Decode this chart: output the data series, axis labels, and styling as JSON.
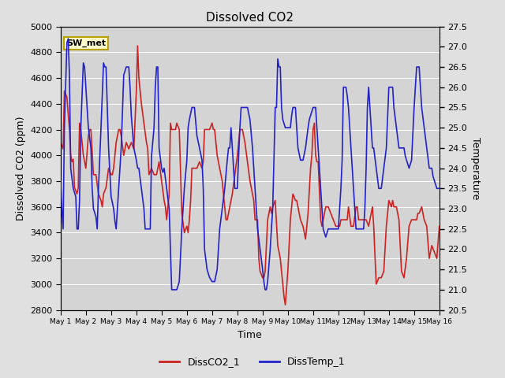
{
  "title": "Dissolved CO2",
  "xlabel": "Time",
  "ylabel_left": "Dissolved CO2 (ppm)",
  "ylabel_right": "Temperature",
  "legend_label": "SW_met",
  "series1_label": "DissCO2_1",
  "series2_label": "DissTemp_1",
  "ylim_left": [
    2800,
    5000
  ],
  "ylim_right": [
    20.5,
    27.5
  ],
  "xtick_labels": [
    "May 1",
    "May 2",
    "May 3",
    "May 4",
    "May 5",
    "May 6",
    "May 7",
    "May 8",
    "May 9",
    "May 10",
    "May 11",
    "May 12",
    "May 13",
    "May 14",
    "May 15",
    "May 16"
  ],
  "color_co2": "#cc2222",
  "color_temp": "#2222cc",
  "bg_color": "#e0e0e0",
  "plot_bg_color": "#d4d4d4",
  "grid_color": "#ffffff",
  "title_fontsize": 11,
  "label_fontsize": 9,
  "tick_fontsize": 8,
  "legend_box_edgecolor": "#b8a000",
  "legend_box_bg": "#ffffcc",
  "co2_data": [
    [
      0.0,
      4100
    ],
    [
      0.1,
      4050
    ],
    [
      0.15,
      4500
    ],
    [
      0.25,
      4450
    ],
    [
      0.35,
      4200
    ],
    [
      0.4,
      4000
    ],
    [
      0.45,
      3950
    ],
    [
      0.5,
      3970
    ],
    [
      0.55,
      3750
    ],
    [
      0.65,
      3700
    ],
    [
      0.7,
      3750
    ],
    [
      0.75,
      4250
    ],
    [
      0.8,
      4200
    ],
    [
      0.9,
      4000
    ],
    [
      1.0,
      3900
    ],
    [
      1.1,
      4150
    ],
    [
      1.15,
      4200
    ],
    [
      1.2,
      4200
    ],
    [
      1.3,
      3850
    ],
    [
      1.4,
      3850
    ],
    [
      1.5,
      3700
    ],
    [
      1.6,
      3650
    ],
    [
      1.65,
      3600
    ],
    [
      1.7,
      3700
    ],
    [
      1.8,
      3750
    ],
    [
      1.9,
      3900
    ],
    [
      2.0,
      3850
    ],
    [
      2.05,
      3850
    ],
    [
      2.1,
      3900
    ],
    [
      2.2,
      4100
    ],
    [
      2.3,
      4200
    ],
    [
      2.35,
      4200
    ],
    [
      2.4,
      4150
    ],
    [
      2.5,
      4000
    ],
    [
      2.6,
      4100
    ],
    [
      2.7,
      4050
    ],
    [
      2.8,
      4100
    ],
    [
      2.9,
      4050
    ],
    [
      3.0,
      4500
    ],
    [
      3.05,
      4850
    ],
    [
      3.1,
      4600
    ],
    [
      3.2,
      4400
    ],
    [
      3.3,
      4250
    ],
    [
      3.4,
      4100
    ],
    [
      3.45,
      4050
    ],
    [
      3.5,
      3850
    ],
    [
      3.6,
      3900
    ],
    [
      3.7,
      3850
    ],
    [
      3.8,
      3850
    ],
    [
      3.9,
      3950
    ],
    [
      4.0,
      3800
    ],
    [
      4.1,
      3650
    ],
    [
      4.15,
      3600
    ],
    [
      4.2,
      3500
    ],
    [
      4.3,
      3700
    ],
    [
      4.35,
      4250
    ],
    [
      4.4,
      4200
    ],
    [
      4.5,
      4200
    ],
    [
      4.55,
      4200
    ],
    [
      4.6,
      4250
    ],
    [
      4.7,
      4200
    ],
    [
      4.8,
      3550
    ],
    [
      4.9,
      3400
    ],
    [
      5.0,
      3450
    ],
    [
      5.05,
      3400
    ],
    [
      5.1,
      3500
    ],
    [
      5.15,
      3650
    ],
    [
      5.2,
      3900
    ],
    [
      5.3,
      3900
    ],
    [
      5.4,
      3900
    ],
    [
      5.5,
      3950
    ],
    [
      5.6,
      3900
    ],
    [
      5.65,
      3950
    ],
    [
      5.7,
      4200
    ],
    [
      5.8,
      4200
    ],
    [
      5.9,
      4200
    ],
    [
      6.0,
      4250
    ],
    [
      6.05,
      4200
    ],
    [
      6.1,
      4200
    ],
    [
      6.2,
      4000
    ],
    [
      6.3,
      3900
    ],
    [
      6.4,
      3800
    ],
    [
      6.5,
      3600
    ],
    [
      6.55,
      3500
    ],
    [
      6.6,
      3500
    ],
    [
      6.7,
      3600
    ],
    [
      6.8,
      3700
    ],
    [
      6.9,
      3850
    ],
    [
      7.0,
      4000
    ],
    [
      7.1,
      4200
    ],
    [
      7.15,
      4200
    ],
    [
      7.2,
      4200
    ],
    [
      7.3,
      4100
    ],
    [
      7.4,
      3950
    ],
    [
      7.5,
      3800
    ],
    [
      7.6,
      3700
    ],
    [
      7.65,
      3650
    ],
    [
      7.7,
      3500
    ],
    [
      7.8,
      3500
    ],
    [
      7.85,
      3200
    ],
    [
      7.9,
      3100
    ],
    [
      8.0,
      3050
    ],
    [
      8.05,
      3050
    ],
    [
      8.1,
      3100
    ],
    [
      8.2,
      3500
    ],
    [
      8.3,
      3600
    ],
    [
      8.35,
      3550
    ],
    [
      8.4,
      3600
    ],
    [
      8.5,
      3650
    ],
    [
      8.6,
      3300
    ],
    [
      8.7,
      3200
    ],
    [
      8.75,
      3100
    ],
    [
      8.8,
      3000
    ],
    [
      8.85,
      2900
    ],
    [
      8.9,
      2840
    ],
    [
      9.0,
      3100
    ],
    [
      9.05,
      3300
    ],
    [
      9.1,
      3500
    ],
    [
      9.2,
      3700
    ],
    [
      9.3,
      3650
    ],
    [
      9.35,
      3650
    ],
    [
      9.4,
      3600
    ],
    [
      9.5,
      3500
    ],
    [
      9.6,
      3450
    ],
    [
      9.65,
      3400
    ],
    [
      9.7,
      3350
    ],
    [
      9.8,
      3550
    ],
    [
      9.9,
      3900
    ],
    [
      9.95,
      4000
    ],
    [
      10.0,
      4200
    ],
    [
      10.05,
      4250
    ],
    [
      10.1,
      4000
    ],
    [
      10.15,
      3950
    ],
    [
      10.2,
      3950
    ],
    [
      10.3,
      3500
    ],
    [
      10.35,
      3450
    ],
    [
      10.4,
      3500
    ],
    [
      10.5,
      3600
    ],
    [
      10.6,
      3600
    ],
    [
      10.7,
      3550
    ],
    [
      10.8,
      3500
    ],
    [
      10.9,
      3450
    ],
    [
      11.0,
      3450
    ],
    [
      11.05,
      3450
    ],
    [
      11.1,
      3500
    ],
    [
      11.15,
      3500
    ],
    [
      11.2,
      3500
    ],
    [
      11.3,
      3500
    ],
    [
      11.35,
      3500
    ],
    [
      11.4,
      3600
    ],
    [
      11.5,
      3450
    ],
    [
      11.6,
      3450
    ],
    [
      11.7,
      3600
    ],
    [
      11.75,
      3600
    ],
    [
      11.8,
      3500
    ],
    [
      11.9,
      3500
    ],
    [
      12.0,
      3500
    ],
    [
      12.05,
      3500
    ],
    [
      12.1,
      3500
    ],
    [
      12.2,
      3450
    ],
    [
      12.3,
      3550
    ],
    [
      12.35,
      3600
    ],
    [
      12.4,
      3450
    ],
    [
      12.5,
      3000
    ],
    [
      12.6,
      3050
    ],
    [
      12.65,
      3050
    ],
    [
      12.7,
      3050
    ],
    [
      12.8,
      3100
    ],
    [
      12.9,
      3450
    ],
    [
      13.0,
      3650
    ],
    [
      13.1,
      3600
    ],
    [
      13.15,
      3650
    ],
    [
      13.2,
      3600
    ],
    [
      13.3,
      3600
    ],
    [
      13.35,
      3550
    ],
    [
      13.4,
      3500
    ],
    [
      13.5,
      3100
    ],
    [
      13.6,
      3050
    ],
    [
      13.7,
      3200
    ],
    [
      13.8,
      3450
    ],
    [
      13.9,
      3500
    ],
    [
      14.0,
      3500
    ],
    [
      14.1,
      3500
    ],
    [
      14.15,
      3550
    ],
    [
      14.2,
      3550
    ],
    [
      14.3,
      3600
    ],
    [
      14.4,
      3500
    ],
    [
      14.5,
      3450
    ],
    [
      14.6,
      3200
    ],
    [
      14.7,
      3300
    ],
    [
      14.8,
      3250
    ],
    [
      14.9,
      3200
    ],
    [
      15.0,
      3450
    ]
  ],
  "temp_data": [
    [
      0.0,
      23.7
    ],
    [
      0.05,
      23.0
    ],
    [
      0.1,
      22.5
    ],
    [
      0.15,
      25.0
    ],
    [
      0.25,
      27.1
    ],
    [
      0.3,
      27.2
    ],
    [
      0.35,
      26.3
    ],
    [
      0.4,
      24.0
    ],
    [
      0.5,
      23.5
    ],
    [
      0.6,
      23.3
    ],
    [
      0.65,
      22.5
    ],
    [
      0.7,
      22.5
    ],
    [
      0.75,
      23.2
    ],
    [
      0.8,
      25.0
    ],
    [
      0.9,
      26.6
    ],
    [
      0.95,
      26.5
    ],
    [
      1.0,
      26.0
    ],
    [
      1.05,
      25.5
    ],
    [
      1.1,
      25.0
    ],
    [
      1.2,
      24.5
    ],
    [
      1.25,
      23.5
    ],
    [
      1.3,
      23.0
    ],
    [
      1.4,
      22.8
    ],
    [
      1.45,
      22.5
    ],
    [
      1.5,
      23.5
    ],
    [
      1.6,
      25.0
    ],
    [
      1.7,
      26.6
    ],
    [
      1.75,
      26.5
    ],
    [
      1.8,
      26.5
    ],
    [
      1.85,
      25.5
    ],
    [
      1.9,
      24.5
    ],
    [
      2.0,
      23.3
    ],
    [
      2.1,
      23.0
    ],
    [
      2.15,
      22.7
    ],
    [
      2.2,
      22.5
    ],
    [
      2.3,
      23.5
    ],
    [
      2.4,
      24.5
    ],
    [
      2.5,
      26.3
    ],
    [
      2.6,
      26.5
    ],
    [
      2.65,
      26.5
    ],
    [
      2.7,
      26.5
    ],
    [
      2.75,
      26.0
    ],
    [
      2.8,
      25.3
    ],
    [
      2.9,
      24.5
    ],
    [
      3.0,
      24.2
    ],
    [
      3.05,
      24.0
    ],
    [
      3.1,
      24.0
    ],
    [
      3.2,
      23.5
    ],
    [
      3.3,
      23.0
    ],
    [
      3.35,
      22.5
    ],
    [
      3.4,
      22.5
    ],
    [
      3.5,
      22.5
    ],
    [
      3.55,
      22.5
    ],
    [
      3.6,
      24.3
    ],
    [
      3.7,
      25.0
    ],
    [
      3.75,
      26.0
    ],
    [
      3.8,
      26.5
    ],
    [
      3.85,
      26.5
    ],
    [
      3.9,
      24.5
    ],
    [
      4.0,
      24.0
    ],
    [
      4.05,
      23.9
    ],
    [
      4.1,
      24.0
    ],
    [
      4.2,
      23.5
    ],
    [
      4.3,
      23.0
    ],
    [
      4.4,
      21.0
    ],
    [
      4.5,
      21.0
    ],
    [
      4.55,
      21.0
    ],
    [
      4.6,
      21.0
    ],
    [
      4.7,
      21.2
    ],
    [
      4.8,
      22.5
    ],
    [
      4.9,
      23.5
    ],
    [
      5.0,
      24.2
    ],
    [
      5.05,
      25.0
    ],
    [
      5.1,
      25.2
    ],
    [
      5.2,
      25.5
    ],
    [
      5.3,
      25.5
    ],
    [
      5.4,
      24.8
    ],
    [
      5.5,
      24.5
    ],
    [
      5.6,
      24.2
    ],
    [
      5.65,
      23.5
    ],
    [
      5.7,
      22.0
    ],
    [
      5.8,
      21.5
    ],
    [
      5.9,
      21.3
    ],
    [
      6.0,
      21.2
    ],
    [
      6.1,
      21.2
    ],
    [
      6.2,
      21.5
    ],
    [
      6.3,
      22.5
    ],
    [
      6.4,
      23.0
    ],
    [
      6.5,
      23.5
    ],
    [
      6.6,
      24.2
    ],
    [
      6.65,
      24.5
    ],
    [
      6.7,
      24.5
    ],
    [
      6.75,
      25.0
    ],
    [
      6.8,
      24.5
    ],
    [
      6.9,
      23.5
    ],
    [
      7.0,
      23.5
    ],
    [
      7.05,
      24.3
    ],
    [
      7.1,
      25.0
    ],
    [
      7.15,
      25.5
    ],
    [
      7.2,
      25.5
    ],
    [
      7.3,
      25.5
    ],
    [
      7.4,
      25.5
    ],
    [
      7.5,
      25.2
    ],
    [
      7.6,
      24.5
    ],
    [
      7.7,
      23.5
    ],
    [
      7.8,
      22.5
    ],
    [
      7.9,
      22.0
    ],
    [
      8.0,
      21.5
    ],
    [
      8.05,
      21.2
    ],
    [
      8.1,
      21.0
    ],
    [
      8.15,
      21.0
    ],
    [
      8.2,
      21.2
    ],
    [
      8.3,
      22.0
    ],
    [
      8.4,
      23.0
    ],
    [
      8.5,
      25.5
    ],
    [
      8.55,
      25.5
    ],
    [
      8.6,
      26.7
    ],
    [
      8.65,
      26.5
    ],
    [
      8.7,
      26.5
    ],
    [
      8.75,
      25.5
    ],
    [
      8.8,
      25.2
    ],
    [
      8.9,
      25.0
    ],
    [
      9.0,
      25.0
    ],
    [
      9.05,
      25.0
    ],
    [
      9.1,
      25.0
    ],
    [
      9.15,
      25.3
    ],
    [
      9.2,
      25.5
    ],
    [
      9.3,
      25.5
    ],
    [
      9.35,
      25.0
    ],
    [
      9.4,
      24.5
    ],
    [
      9.5,
      24.2
    ],
    [
      9.6,
      24.2
    ],
    [
      9.7,
      24.5
    ],
    [
      9.8,
      25.0
    ],
    [
      9.85,
      25.2
    ],
    [
      9.9,
      25.3
    ],
    [
      10.0,
      25.5
    ],
    [
      10.05,
      25.5
    ],
    [
      10.1,
      25.5
    ],
    [
      10.2,
      24.5
    ],
    [
      10.3,
      23.5
    ],
    [
      10.4,
      22.5
    ],
    [
      10.5,
      22.3
    ],
    [
      10.6,
      22.5
    ],
    [
      10.7,
      22.5
    ],
    [
      10.75,
      22.5
    ],
    [
      10.8,
      22.5
    ],
    [
      10.9,
      22.5
    ],
    [
      11.0,
      22.5
    ],
    [
      11.05,
      23.0
    ],
    [
      11.1,
      23.5
    ],
    [
      11.15,
      24.2
    ],
    [
      11.2,
      26.0
    ],
    [
      11.3,
      26.0
    ],
    [
      11.35,
      25.8
    ],
    [
      11.4,
      25.5
    ],
    [
      11.5,
      24.5
    ],
    [
      11.6,
      23.5
    ],
    [
      11.7,
      22.5
    ],
    [
      11.8,
      22.5
    ],
    [
      11.9,
      22.5
    ],
    [
      12.0,
      22.5
    ],
    [
      12.05,
      23.0
    ],
    [
      12.1,
      24.0
    ],
    [
      12.15,
      25.5
    ],
    [
      12.2,
      26.0
    ],
    [
      12.3,
      25.0
    ],
    [
      12.35,
      24.5
    ],
    [
      12.4,
      24.5
    ],
    [
      12.5,
      24.0
    ],
    [
      12.6,
      23.5
    ],
    [
      12.7,
      23.5
    ],
    [
      12.8,
      24.0
    ],
    [
      12.9,
      24.5
    ],
    [
      13.0,
      26.0
    ],
    [
      13.05,
      26.0
    ],
    [
      13.1,
      26.0
    ],
    [
      13.15,
      26.0
    ],
    [
      13.2,
      25.5
    ],
    [
      13.3,
      25.0
    ],
    [
      13.4,
      24.5
    ],
    [
      13.5,
      24.5
    ],
    [
      13.6,
      24.5
    ],
    [
      13.65,
      24.3
    ],
    [
      13.7,
      24.2
    ],
    [
      13.8,
      24.0
    ],
    [
      13.9,
      24.2
    ],
    [
      14.0,
      25.5
    ],
    [
      14.05,
      26.0
    ],
    [
      14.1,
      26.5
    ],
    [
      14.2,
      26.5
    ],
    [
      14.3,
      25.5
    ],
    [
      14.4,
      25.0
    ],
    [
      14.5,
      24.5
    ],
    [
      14.6,
      24.0
    ],
    [
      14.7,
      24.0
    ],
    [
      14.75,
      23.8
    ],
    [
      14.8,
      23.7
    ],
    [
      14.9,
      23.5
    ],
    [
      15.0,
      23.5
    ]
  ]
}
